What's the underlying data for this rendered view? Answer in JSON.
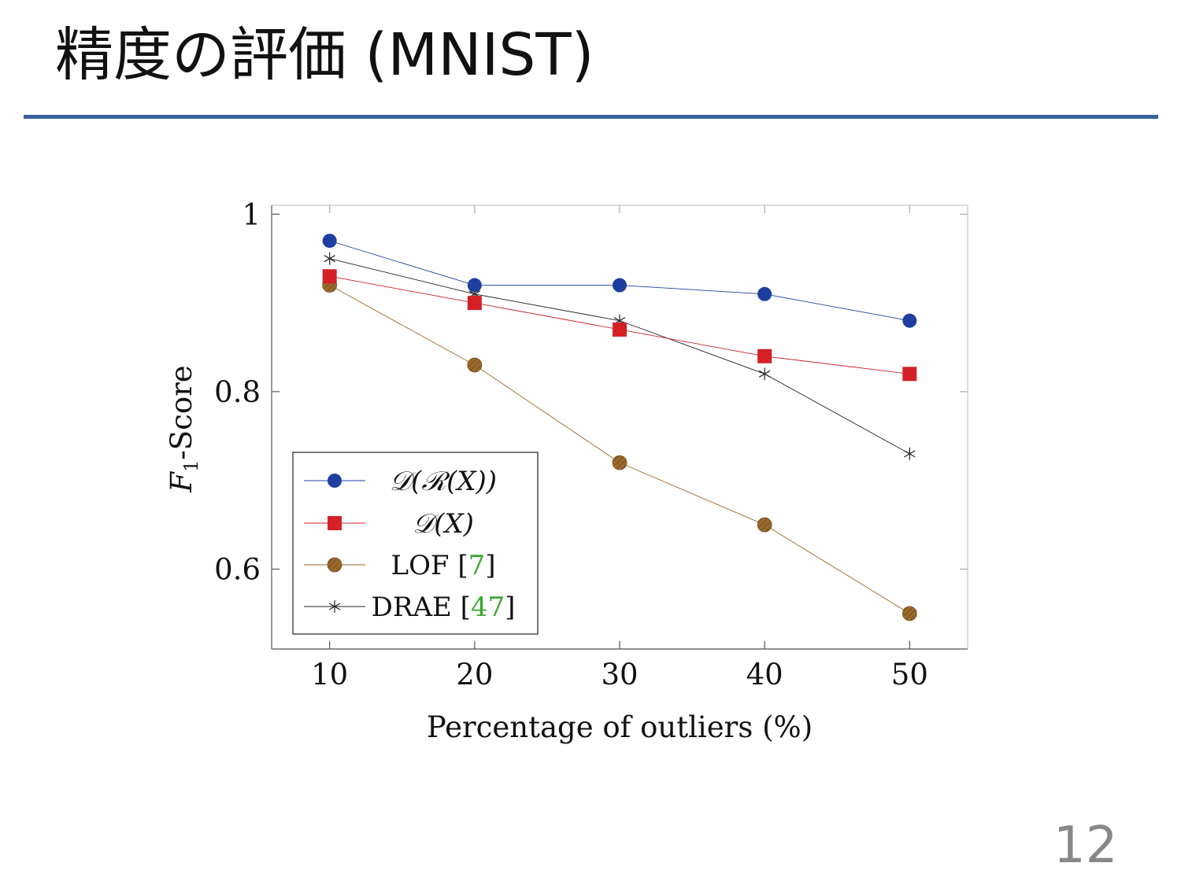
{
  "slide": {
    "title": "精度の評価 (MNIST)",
    "page_number": "12",
    "accent_color": "#3b62a0"
  },
  "chart_data": {
    "type": "line",
    "title": "",
    "xlabel": "Percentage of outliers (%)",
    "ylabel_main": "F",
    "ylabel_sub": "1",
    "ylabel_rest": "-Score",
    "x": [
      10,
      20,
      30,
      40,
      50
    ],
    "x_ticks": [
      "10",
      "20",
      "30",
      "40",
      "50"
    ],
    "y_ticks": [
      {
        "value": 1.0,
        "label": "1"
      },
      {
        "value": 0.8,
        "label": "0.8"
      },
      {
        "value": 0.6,
        "label": "0.6"
      }
    ],
    "xlim": [
      6,
      54
    ],
    "ylim": [
      0.51,
      1.01
    ],
    "grid": false,
    "legend_position": "bottom-left",
    "series": [
      {
        "name": "𝒟(ℛ(X))",
        "legend_label": "𝒟(ℛ(X))",
        "marker": "circle",
        "color": "#1f3fa0",
        "values": [
          0.97,
          0.92,
          0.92,
          0.91,
          0.88
        ]
      },
      {
        "name": "𝒟(X)",
        "legend_label": "𝒟(X)",
        "marker": "square",
        "color": "#d42027",
        "values": [
          0.93,
          0.9,
          0.87,
          0.84,
          0.82
        ]
      },
      {
        "name": "LOF [7]",
        "legend_label": "LOF [",
        "legend_ref": "7",
        "marker": "circle-hatched",
        "color": "#9a6a2c",
        "values": [
          0.92,
          0.83,
          0.72,
          0.65,
          0.55
        ]
      },
      {
        "name": "DRAE [47]",
        "legend_label": "DRAE [",
        "legend_ref": "47",
        "marker": "star",
        "color": "#222222",
        "values": [
          0.95,
          0.91,
          0.88,
          0.82,
          0.73
        ]
      }
    ],
    "ref_color": "#3aa832"
  }
}
